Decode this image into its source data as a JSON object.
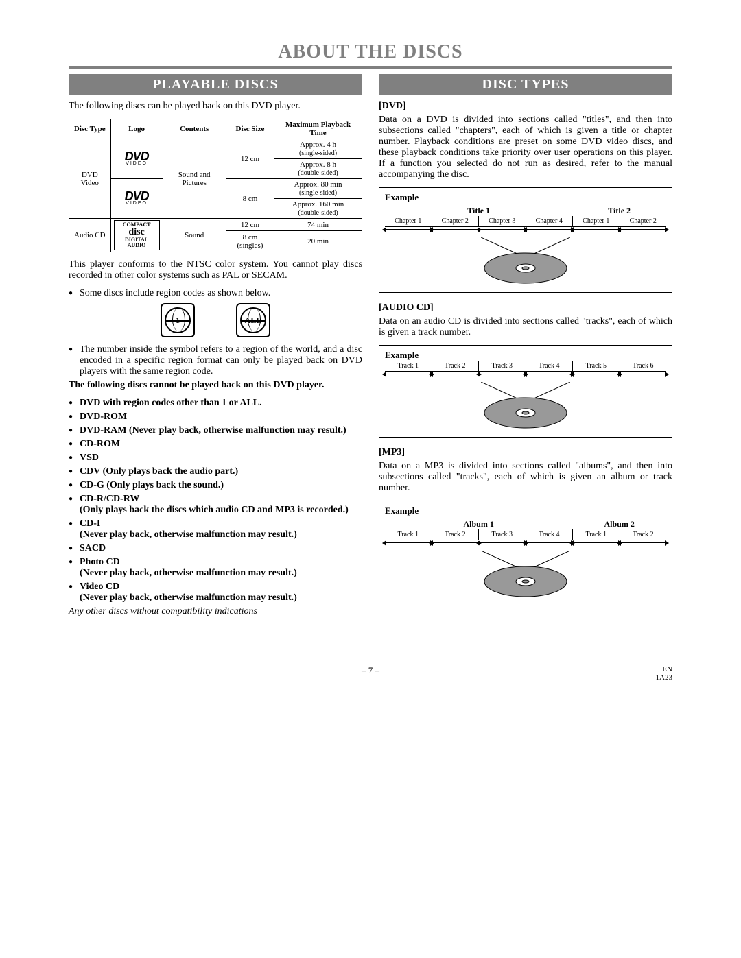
{
  "page": {
    "title": "ABOUT THE DISCS",
    "pageNumber": "– 7 –",
    "lang": "EN",
    "code": "1A23"
  },
  "left": {
    "header": "PLAYABLE DISCS",
    "intro": "The following discs can be played back on this DVD player.",
    "table": {
      "headers": [
        "Disc Type",
        "Logo",
        "Contents",
        "Disc Size",
        "Maximum Playback Time"
      ],
      "dvd": {
        "type": "DVD Video",
        "contents": "Sound and Pictures",
        "rows": [
          {
            "size": "12 cm",
            "time1": "Approx. 4 h",
            "side1": "(single-sided)",
            "time2": "Approx. 8 h",
            "side2": "(double-sided)"
          },
          {
            "size": "8 cm",
            "time1": "Approx. 80 min",
            "side1": "(single-sided)",
            "time2": "Approx. 160 min",
            "side2": "(double-sided)"
          }
        ]
      },
      "cd": {
        "type": "Audio CD",
        "contents": "Sound",
        "rows": [
          {
            "size": "12 cm",
            "time": "74 min"
          },
          {
            "size": "8 cm (singles)",
            "time": "20 min"
          }
        ]
      }
    },
    "ntsc": "This player conforms to the NTSC color system. You cannot play discs recorded in other color systems such as PAL or SECAM.",
    "regionBullet": "Some discs include region codes as shown below.",
    "regionAll": "ALL",
    "region1": "1",
    "regionNote": "The number inside the symbol refers to a region of the world, and a disc encoded in a specific region format can only be played back on DVD players with the same region code.",
    "cannotPlay": "The following discs cannot be played back on this DVD player.",
    "cannotList": [
      "DVD with region codes other than 1 or ALL.",
      "DVD-ROM",
      "DVD-RAM (Never play back, otherwise malfunction may result.)",
      "CD-ROM",
      "VSD",
      "CDV (Only plays back the audio part.)",
      "CD-G (Only plays back the sound.)",
      "CD-R/CD-RW\n(Only plays back the discs which audio CD and MP3 is recorded.)",
      "CD-I\n(Never play back, otherwise malfunction may result.)",
      "SACD",
      "Photo CD\n(Never play back, otherwise malfunction may result.)",
      "Video CD\n(Never play back, otherwise malfunction may result.)"
    ],
    "anyOther": "Any other discs without compatibility indications"
  },
  "right": {
    "header": "DISC TYPES",
    "dvd": {
      "label": "[DVD]",
      "text": "Data on a DVD is divided into sections called \"titles\", and then into subsections called \"chapters\", each of which is given a title or chapter number. Playback conditions are preset on some DVD video discs, and these playback conditions take priority over user operations on this player. If a function you selected do not run as desired, refer to the manual accompanying the disc.",
      "example": "Example",
      "titles": [
        "Title 1",
        "Title 2"
      ],
      "chapters": [
        "Chapter 1",
        "Chapter 2",
        "Chapter 3",
        "Chapter 4",
        "Chapter 1",
        "Chapter 2"
      ]
    },
    "audiocd": {
      "label": "[AUDIO CD]",
      "text": "Data on an audio CD is divided into sections called \"tracks\", each of which is given a track number.",
      "example": "Example",
      "tracks": [
        "Track 1",
        "Track 2",
        "Track 3",
        "Track 4",
        "Track 5",
        "Track 6"
      ]
    },
    "mp3": {
      "label": "[MP3]",
      "text": "Data on a MP3 is divided into sections called \"albums\", and then into subsections called \"tracks\", each of which is given an album or track number.",
      "example": "Example",
      "albums": [
        "Album 1",
        "Album 2"
      ],
      "tracks": [
        "Track 1",
        "Track 2",
        "Track 3",
        "Track 4",
        "Track 1",
        "Track 2"
      ]
    }
  }
}
